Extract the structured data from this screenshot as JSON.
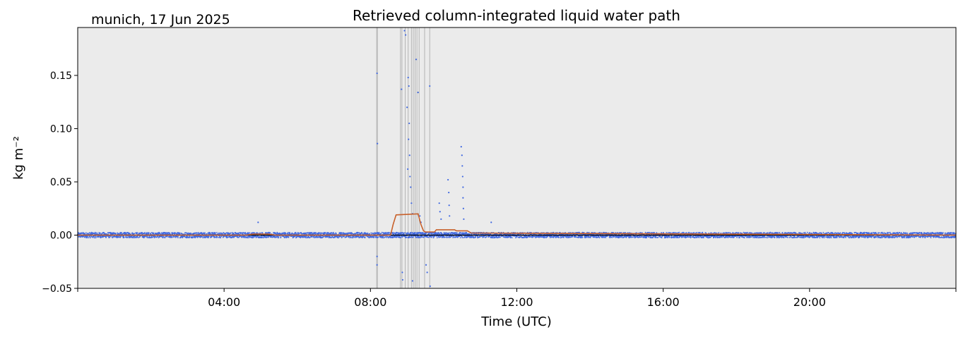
{
  "chart_data": {
    "type": "scatter",
    "title": "Retrieved column-integrated liquid water path",
    "site_label": "munich, 17 Jun 2025",
    "xlabel": "Time (UTC)",
    "ylabel": "kg m⁻²",
    "xlim_hours": [
      0,
      24
    ],
    "ylim": [
      -0.05,
      0.195
    ],
    "x_ticks": [
      "04:00",
      "08:00",
      "12:00",
      "16:00",
      "20:00"
    ],
    "x_tick_hours": [
      4,
      8,
      12,
      16,
      20
    ],
    "y_ticks": [
      "−0.05",
      "0.00",
      "0.05",
      "0.10",
      "0.15"
    ],
    "y_tick_values": [
      -0.05,
      0.0,
      0.05,
      0.1,
      0.15
    ],
    "grid": false,
    "background_color": "#ebebeb",
    "colors": {
      "points": "#4169e1",
      "smoothed_line": "#c8602a",
      "flag_lines": "#b4b4b4",
      "zero_line": "#000000"
    },
    "flagged_times_hours": [
      8.17,
      8.19,
      8.82,
      8.86,
      8.95,
      9.03,
      9.12,
      9.17,
      9.22,
      9.27,
      9.33,
      9.48,
      9.62
    ],
    "baseline_noise": 0.0025,
    "spikes": [
      {
        "x": 4.93,
        "y": 0.012
      },
      {
        "x": 8.18,
        "y": 0.152
      },
      {
        "x": 8.19,
        "y": 0.086
      },
      {
        "x": 8.18,
        "y": -0.02
      },
      {
        "x": 8.18,
        "y": -0.028
      },
      {
        "x": 8.85,
        "y": 0.137
      },
      {
        "x": 8.87,
        "y": -0.035
      },
      {
        "x": 8.88,
        "y": -0.042
      },
      {
        "x": 8.93,
        "y": 0.192
      },
      {
        "x": 8.96,
        "y": 0.188
      },
      {
        "x": 9.03,
        "y": 0.148
      },
      {
        "x": 9.05,
        "y": 0.14
      },
      {
        "x": 9.0,
        "y": 0.12
      },
      {
        "x": 9.06,
        "y": 0.105
      },
      {
        "x": 9.04,
        "y": 0.09
      },
      {
        "x": 9.07,
        "y": 0.075
      },
      {
        "x": 9.02,
        "y": 0.062
      },
      {
        "x": 9.08,
        "y": 0.055
      },
      {
        "x": 9.1,
        "y": 0.045
      },
      {
        "x": 9.12,
        "y": 0.03
      },
      {
        "x": 9.15,
        "y": 0.02
      },
      {
        "x": 9.15,
        "y": -0.043
      },
      {
        "x": 9.25,
        "y": 0.165
      },
      {
        "x": 9.3,
        "y": 0.134
      },
      {
        "x": 9.35,
        "y": 0.018
      },
      {
        "x": 9.38,
        "y": 0.012
      },
      {
        "x": 9.52,
        "y": -0.028
      },
      {
        "x": 9.55,
        "y": -0.035
      },
      {
        "x": 9.62,
        "y": 0.14
      },
      {
        "x": 9.63,
        "y": -0.048
      },
      {
        "x": 9.88,
        "y": 0.03
      },
      {
        "x": 9.9,
        "y": 0.022
      },
      {
        "x": 9.93,
        "y": 0.015
      },
      {
        "x": 10.12,
        "y": 0.052
      },
      {
        "x": 10.14,
        "y": 0.04
      },
      {
        "x": 10.15,
        "y": 0.028
      },
      {
        "x": 10.16,
        "y": 0.018
      },
      {
        "x": 10.48,
        "y": 0.083
      },
      {
        "x": 10.5,
        "y": 0.075
      },
      {
        "x": 10.51,
        "y": 0.065
      },
      {
        "x": 10.52,
        "y": 0.055
      },
      {
        "x": 10.53,
        "y": 0.045
      },
      {
        "x": 10.53,
        "y": 0.035
      },
      {
        "x": 10.54,
        "y": 0.025
      },
      {
        "x": 10.55,
        "y": 0.015
      },
      {
        "x": 11.3,
        "y": 0.012
      }
    ],
    "smoothed_series": {
      "x": [
        0,
        4.6,
        4.8,
        5.2,
        5.4,
        8.55,
        8.62,
        8.7,
        9.3,
        9.38,
        9.45,
        9.5,
        9.75,
        9.8,
        10.3,
        10.35,
        10.65,
        10.75,
        24
      ],
      "y": [
        0.0,
        0.0,
        0.001,
        0.001,
        0.0,
        0.0,
        0.01,
        0.019,
        0.02,
        0.01,
        0.004,
        0.003,
        0.003,
        0.005,
        0.005,
        0.004,
        0.004,
        0.002,
        0.0
      ]
    }
  }
}
